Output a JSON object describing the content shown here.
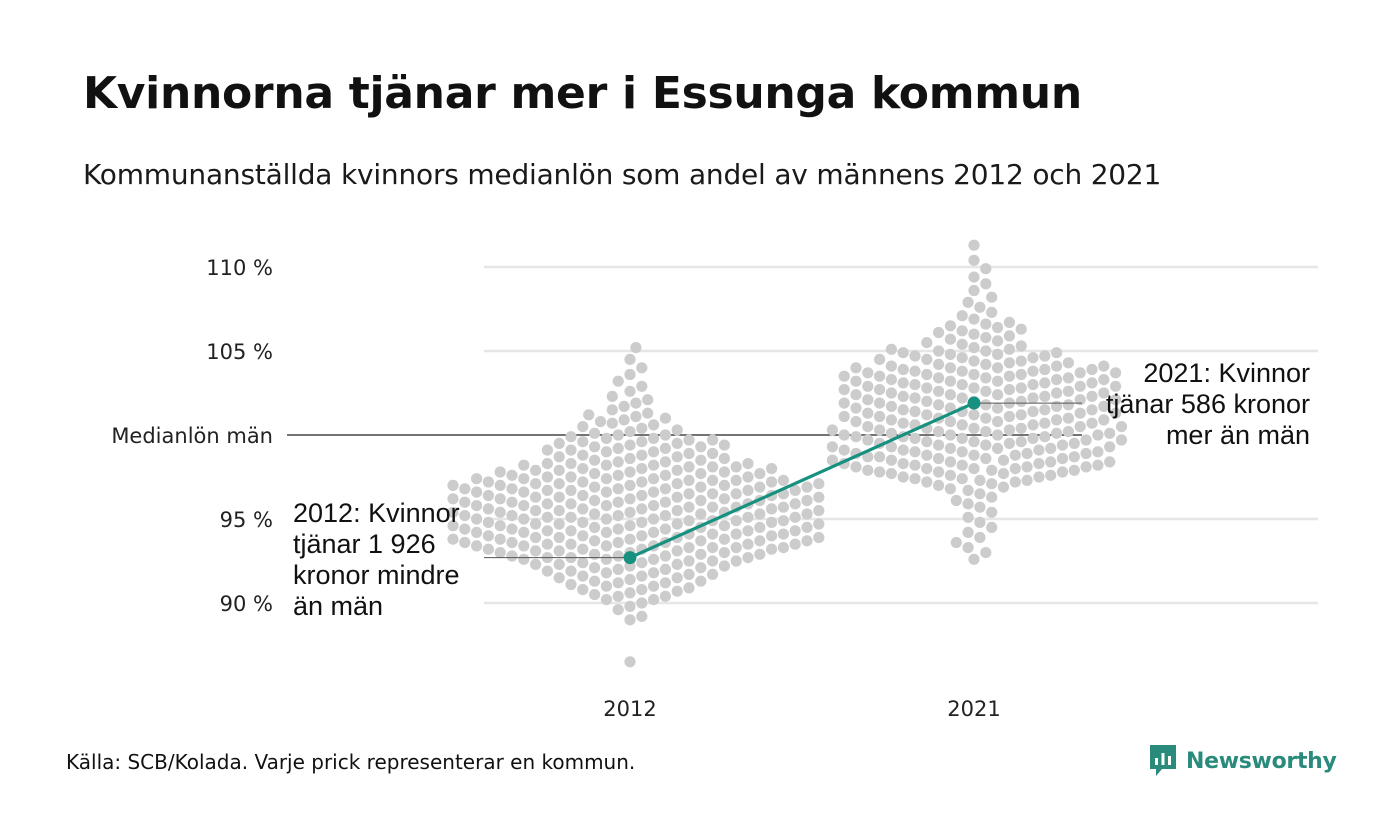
{
  "title": "Kvinnorna tjänar mer i Essunga kommun",
  "subtitle": "Kommunanställda kvinnors medianlön som andel av männens 2012 och 2021",
  "source": "Källa: SCB/Kolada. Varje prick representerar en kommun.",
  "brand": {
    "name": "Newsworthy",
    "icon": "newsworthy-logo-icon"
  },
  "colors": {
    "accent": "#17917f",
    "dots": "#cccccc",
    "grid": "#e6e6e6",
    "reference_line": "#222222"
  },
  "chart_data": {
    "type": "scatter",
    "subtype": "beeswarm",
    "categories": [
      "2012",
      "2021"
    ],
    "y_ticks": [
      {
        "value": 90,
        "label": "90 %"
      },
      {
        "value": 95,
        "label": "95 %"
      },
      {
        "value": 100,
        "label": "Medianlön män"
      },
      {
        "value": 105,
        "label": "105 %"
      },
      {
        "value": 110,
        "label": "110 %"
      }
    ],
    "ylim": [
      85.5,
      112.5
    ],
    "grid": true,
    "reference_value": 100,
    "reference_label": "Medianlön män",
    "highlight": {
      "values": [
        {
          "category": "2012",
          "y": 92.7
        },
        {
          "category": "2021",
          "y": 101.9
        }
      ]
    },
    "annotations": [
      {
        "category": "2012",
        "lines": [
          "2012: Kvinnor",
          "tjänar 1 926",
          "kronor mindre",
          "än män"
        ]
      },
      {
        "category": "2021",
        "lines": [
          "2021: Kvinnor",
          "tjänar 586 kronor",
          "mer än män"
        ]
      }
    ],
    "distribution_2012": {
      "y_values": [
        86.5,
        89.0,
        89.2,
        89.6,
        89.8,
        90.0,
        90.2,
        90.2,
        90.4,
        90.4,
        90.5,
        90.6,
        90.7,
        90.8,
        90.8,
        90.9,
        91.0,
        91.0,
        91.1,
        91.2,
        91.2,
        91.3,
        91.3,
        91.4,
        91.5,
        91.5,
        91.6,
        91.6,
        91.7,
        91.7,
        91.8,
        91.8,
        91.9,
        91.9,
        92.0,
        92.0,
        92.1,
        92.1,
        92.2,
        92.2,
        92.3,
        92.3,
        92.3,
        92.4,
        92.4,
        92.5,
        92.5,
        92.5,
        92.6,
        92.6,
        92.6,
        92.7,
        92.7,
        92.7,
        92.8,
        92.8,
        92.8,
        92.9,
        92.9,
        92.9,
        93.0,
        93.0,
        93.0,
        93.1,
        93.1,
        93.1,
        93.2,
        93.2,
        93.2,
        93.2,
        93.3,
        93.3,
        93.3,
        93.3,
        93.4,
        93.4,
        93.4,
        93.4,
        93.5,
        93.5,
        93.5,
        93.5,
        93.6,
        93.6,
        93.6,
        93.6,
        93.7,
        93.7,
        93.7,
        93.7,
        93.8,
        93.8,
        93.8,
        93.8,
        93.9,
        93.9,
        93.9,
        93.9,
        94.0,
        94.0,
        94.0,
        94.0,
        94.1,
        94.1,
        94.1,
        94.1,
        94.2,
        94.2,
        94.2,
        94.2,
        94.3,
        94.3,
        94.3,
        94.3,
        94.4,
        94.4,
        94.4,
        94.4,
        94.5,
        94.5,
        94.5,
        94.5,
        94.6,
        94.6,
        94.6,
        94.6,
        94.7,
        94.7,
        94.7,
        94.7,
        94.8,
        94.8,
        94.8,
        94.8,
        94.9,
        94.9,
        94.9,
        94.9,
        95.0,
        95.0,
        95.0,
        95.0,
        95.1,
        95.1,
        95.1,
        95.1,
        95.2,
        95.2,
        95.2,
        95.2,
        95.3,
        95.3,
        95.3,
        95.3,
        95.4,
        95.4,
        95.4,
        95.4,
        95.5,
        95.5,
        95.5,
        95.5,
        95.6,
        95.6,
        95.6,
        95.6,
        95.7,
        95.7,
        95.7,
        95.7,
        95.8,
        95.8,
        95.8,
        95.8,
        95.9,
        95.9,
        95.9,
        95.9,
        96.0,
        96.0,
        96.0,
        96.0,
        96.1,
        96.1,
        96.1,
        96.1,
        96.2,
        96.2,
        96.2,
        96.2,
        96.3,
        96.3,
        96.3,
        96.3,
        96.4,
        96.4,
        96.4,
        96.4,
        96.5,
        96.5,
        96.5,
        96.5,
        96.6,
        96.6,
        96.6,
        96.6,
        96.7,
        96.7,
        96.7,
        96.7,
        96.8,
        96.8,
        96.8,
        96.8,
        96.9,
        96.9,
        96.9,
        96.9,
        97.0,
        97.0,
        97.0,
        97.0,
        97.1,
        97.1,
        97.1,
        97.1,
        97.2,
        97.2,
        97.2,
        97.2,
        97.3,
        97.3,
        97.3,
        97.3,
        97.4,
        97.4,
        97.4,
        97.4,
        97.5,
        97.5,
        97.5,
        97.6,
        97.6,
        97.6,
        97.7,
        97.7,
        97.7,
        97.8,
        97.8,
        97.8,
        97.9,
        97.9,
        97.9,
        98.0,
        98.0,
        98.0,
        98.1,
        98.1,
        98.1,
        98.2,
        98.2,
        98.2,
        98.3,
        98.3,
        98.3,
        98.4,
        98.4,
        98.5,
        98.5,
        98.6,
        98.6,
        98.7,
        98.7,
        98.8,
        98.8,
        98.9,
        98.9,
        99.0,
        99.0,
        99.1,
        99.1,
        99.2,
        99.2,
        99.3,
        99.3,
        99.4,
        99.4,
        99.5,
        99.5,
        99.6,
        99.6,
        99.7,
        99.7,
        99.8,
        99.8,
        99.9,
        100.0,
        100.0,
        100.1,
        100.2,
        100.3,
        100.4,
        100.5,
        100.6,
        100.7,
        100.8,
        100.9,
        101.0,
        101.1,
        101.2,
        101.3,
        101.5,
        101.7,
        101.9,
        102.1,
        102.3,
        102.6,
        102.9,
        103.2,
        103.6,
        104.0,
        104.5,
        105.2
      ]
    },
    "distribution_2021": {
      "y_values": [
        92.6,
        93.0,
        93.3,
        93.6,
        93.9,
        94.2,
        94.5,
        94.8,
        95.1,
        95.4,
        95.7,
        95.9,
        96.1,
        96.3,
        96.5,
        96.7,
        96.8,
        96.9,
        97.0,
        97.1,
        97.2,
        97.2,
        97.3,
        97.3,
        97.4,
        97.4,
        97.5,
        97.5,
        97.6,
        97.6,
        97.7,
        97.7,
        97.8,
        97.8,
        97.8,
        97.9,
        97.9,
        97.9,
        98.0,
        98.0,
        98.0,
        98.1,
        98.1,
        98.1,
        98.2,
        98.2,
        98.2,
        98.3,
        98.3,
        98.3,
        98.4,
        98.4,
        98.4,
        98.5,
        98.5,
        98.5,
        98.6,
        98.6,
        98.6,
        98.7,
        98.7,
        98.7,
        98.8,
        98.8,
        98.8,
        98.9,
        98.9,
        98.9,
        99.0,
        99.0,
        99.0,
        99.1,
        99.1,
        99.1,
        99.2,
        99.2,
        99.2,
        99.3,
        99.3,
        99.3,
        99.4,
        99.4,
        99.4,
        99.5,
        99.5,
        99.5,
        99.6,
        99.6,
        99.6,
        99.7,
        99.7,
        99.7,
        99.8,
        99.8,
        99.8,
        99.9,
        99.9,
        99.9,
        100.0,
        100.0,
        100.0,
        100.0,
        100.1,
        100.1,
        100.1,
        100.2,
        100.2,
        100.2,
        100.3,
        100.3,
        100.3,
        100.4,
        100.4,
        100.4,
        100.5,
        100.5,
        100.5,
        100.6,
        100.6,
        100.6,
        100.7,
        100.7,
        100.7,
        100.8,
        100.8,
        100.8,
        100.9,
        100.9,
        100.9,
        101.0,
        101.0,
        101.0,
        101.1,
        101.1,
        101.1,
        101.2,
        101.2,
        101.2,
        101.3,
        101.3,
        101.3,
        101.4,
        101.4,
        101.4,
        101.5,
        101.5,
        101.5,
        101.6,
        101.6,
        101.6,
        101.7,
        101.7,
        101.7,
        101.8,
        101.8,
        101.8,
        101.9,
        101.9,
        101.9,
        102.0,
        102.0,
        102.0,
        102.1,
        102.1,
        102.1,
        102.2,
        102.2,
        102.2,
        102.3,
        102.3,
        102.3,
        102.4,
        102.4,
        102.4,
        102.5,
        102.5,
        102.5,
        102.6,
        102.6,
        102.6,
        102.7,
        102.7,
        102.7,
        102.8,
        102.8,
        102.8,
        102.9,
        102.9,
        102.9,
        103.0,
        103.0,
        103.0,
        103.1,
        103.1,
        103.1,
        103.2,
        103.2,
        103.2,
        103.3,
        103.3,
        103.3,
        103.4,
        103.4,
        103.4,
        103.5,
        103.5,
        103.5,
        103.6,
        103.6,
        103.6,
        103.7,
        103.7,
        103.7,
        103.8,
        103.8,
        103.8,
        103.9,
        103.9,
        103.9,
        104.0,
        104.0,
        104.0,
        104.1,
        104.1,
        104.1,
        104.2,
        104.2,
        104.3,
        104.3,
        104.4,
        104.4,
        104.5,
        104.5,
        104.6,
        104.6,
        104.7,
        104.7,
        104.8,
        104.8,
        104.9,
        104.9,
        105.0,
        105.0,
        105.1,
        105.1,
        105.2,
        105.3,
        105.4,
        105.5,
        105.6,
        105.7,
        105.8,
        105.9,
        106.0,
        106.1,
        106.2,
        106.3,
        106.4,
        106.5,
        106.6,
        106.7,
        106.9,
        107.1,
        107.3,
        107.6,
        107.9,
        108.2,
        108.6,
        109.0,
        109.4,
        109.9,
        110.4,
        111.3
      ]
    }
  }
}
